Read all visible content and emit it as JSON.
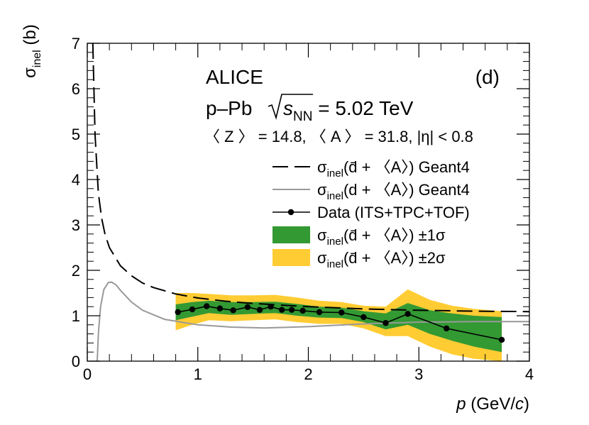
{
  "chart_data": {
    "type": "line",
    "xlabel_italic": "p",
    "xlabel_rest": " (GeV/",
    "xlabel_c": "c",
    "xlabel_close": ")",
    "ylabel_sigma": "σ",
    "ylabel_sub": "inel",
    "ylabel_unit": " (b)",
    "xlim": [
      0,
      4
    ],
    "ylim": [
      0,
      7
    ],
    "x_ticks": [
      0,
      1,
      2,
      3,
      4
    ],
    "y_ticks": [
      0,
      1,
      2,
      3,
      4,
      5,
      6,
      7
    ],
    "annotations": {
      "experiment": "ALICE",
      "panel": "(d)",
      "system": "p–Pb",
      "sqrt_s_sub": "NN",
      "energy": " = 5.02 TeV",
      "za_line": "〈 Z 〉 = 14.8, 〈 A 〉 = 31.8, |η| < 0.8"
    },
    "legend": [
      {
        "name": "geant4-antideuteron",
        "pre": "σ",
        "sub": "inel",
        "text": "(d̄ + 〈A〉) Geant4",
        "style": "dashed"
      },
      {
        "name": "geant4-deuteron",
        "pre": "σ",
        "sub": "inel",
        "text": "(d + 〈A〉) Geant4",
        "style": "gray"
      },
      {
        "name": "data",
        "pre": "",
        "sub": "",
        "text": "Data (ITS+TPC+TOF)",
        "style": "marker"
      },
      {
        "name": "band-1sigma",
        "pre": "σ",
        "sub": "inel",
        "text": "(d̄ + 〈A〉) ±1σ",
        "style": "green"
      },
      {
        "name": "band-2sigma",
        "pre": "σ",
        "sub": "inel",
        "text": "(d̄ + 〈A〉) ±2σ",
        "style": "yellow"
      }
    ],
    "colors": {
      "band1": "#339933",
      "band2": "#FFCC33",
      "gray": "#999999",
      "black": "#000000"
    },
    "series": [
      {
        "name": "Data (ITS+TPC+TOF)",
        "x": [
          0.82,
          0.95,
          1.08,
          1.2,
          1.32,
          1.45,
          1.56,
          1.66,
          1.76,
          1.85,
          1.95,
          2.1,
          2.3,
          2.5,
          2.7,
          2.9,
          3.25,
          3.75
        ],
        "y": [
          1.08,
          1.14,
          1.21,
          1.16,
          1.12,
          1.19,
          1.13,
          1.2,
          1.13,
          1.13,
          1.11,
          1.08,
          1.07,
          0.97,
          0.84,
          1.04,
          0.72,
          0.47
        ]
      },
      {
        "name": "Geant4 antideuteron",
        "x": [
          0.05,
          0.07,
          0.1,
          0.13,
          0.16,
          0.2,
          0.3,
          0.4,
          0.5,
          0.6,
          0.8,
          1.0,
          1.25,
          1.5,
          2.0,
          2.5,
          3.0,
          3.5,
          4.0
        ],
        "y": [
          7.0,
          5.0,
          3.7,
          3.15,
          2.8,
          2.5,
          2.1,
          1.88,
          1.72,
          1.62,
          1.48,
          1.39,
          1.32,
          1.27,
          1.2,
          1.15,
          1.12,
          1.1,
          1.09
        ]
      },
      {
        "name": "Geant4 deuteron",
        "x": [
          0.09,
          0.1,
          0.12,
          0.15,
          0.19,
          0.22,
          0.26,
          0.3,
          0.4,
          0.5,
          0.7,
          1.0,
          1.3,
          1.6,
          2.0,
          2.5,
          3.0,
          3.5,
          4.0
        ],
        "y": [
          0.0,
          0.6,
          1.2,
          1.58,
          1.73,
          1.74,
          1.68,
          1.56,
          1.3,
          1.12,
          0.92,
          0.8,
          0.75,
          0.73,
          0.76,
          0.82,
          0.86,
          0.87,
          0.87
        ]
      },
      {
        "name": "±1σ band",
        "x": [
          0.8,
          0.95,
          1.1,
          1.3,
          1.5,
          1.7,
          1.9,
          2.1,
          2.3,
          2.5,
          2.7,
          2.9,
          3.1,
          3.3,
          3.5,
          3.75
        ],
        "upper": [
          1.25,
          1.3,
          1.33,
          1.3,
          1.3,
          1.31,
          1.26,
          1.2,
          1.18,
          1.1,
          1.05,
          1.28,
          1.12,
          1.05,
          1.0,
          0.97
        ],
        "lower": [
          0.9,
          0.98,
          1.06,
          1.02,
          1.04,
          1.06,
          1.0,
          0.96,
          0.95,
          0.86,
          0.7,
          0.8,
          0.6,
          0.45,
          0.32,
          0.2
        ]
      },
      {
        "name": "±2σ band",
        "x": [
          0.8,
          0.95,
          1.1,
          1.3,
          1.5,
          1.7,
          1.9,
          2.1,
          2.3,
          2.5,
          2.7,
          2.9,
          3.1,
          3.3,
          3.5,
          3.75
        ],
        "upper": [
          1.5,
          1.5,
          1.48,
          1.45,
          1.45,
          1.46,
          1.4,
          1.33,
          1.3,
          1.22,
          1.2,
          1.58,
          1.35,
          1.22,
          1.15,
          1.1
        ],
        "lower": [
          0.68,
          0.8,
          0.9,
          0.88,
          0.9,
          0.92,
          0.86,
          0.82,
          0.82,
          0.72,
          0.55,
          0.55,
          0.32,
          0.15,
          0.05,
          0.0
        ]
      }
    ]
  }
}
